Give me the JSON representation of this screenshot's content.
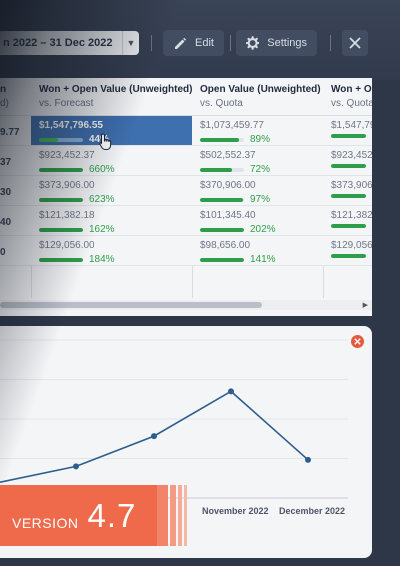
{
  "toolbar": {
    "date_range": "n 2022 – 31 Dec 2022",
    "edit_label": "Edit",
    "settings_label": "Settings"
  },
  "table": {
    "left_col": {
      "header_t1": "n",
      "header_t2": "d)",
      "values": [
        "9.77",
        "37",
        "30",
        "40",
        "0"
      ]
    },
    "columns": [
      {
        "header": "Won + Open Value (Unweighted)",
        "sub": "vs. Forecast",
        "rows": [
          {
            "value": "$1,547,796.55",
            "pct": "44%",
            "fill": 0.44,
            "selected": true
          },
          {
            "value": "$923,452.37",
            "pct": "660%",
            "fill": 1.0
          },
          {
            "value": "$373,906.00",
            "pct": "623%",
            "fill": 1.0
          },
          {
            "value": "$121,382.18",
            "pct": "162%",
            "fill": 1.0
          },
          {
            "value": "$129,056.00",
            "pct": "184%",
            "fill": 1.0
          }
        ]
      },
      {
        "header": "Open Value (Unweighted)",
        "sub": "vs. Quota",
        "rows": [
          {
            "value": "$1,073,459.77",
            "pct": "89%",
            "fill": 0.89
          },
          {
            "value": "$502,552.37",
            "pct": "72%",
            "fill": 0.72
          },
          {
            "value": "$370,906.00",
            "pct": "97%",
            "fill": 0.97
          },
          {
            "value": "$101,345.40",
            "pct": "202%",
            "fill": 1.0
          },
          {
            "value": "$98,656.00",
            "pct": "141%",
            "fill": 1.0
          }
        ]
      },
      {
        "header": "Won + Op",
        "sub": "vs. Quota",
        "rows": [
          {
            "value": "$1,547,79",
            "pct": "",
            "fill": 1.0
          },
          {
            "value": "$923,452",
            "pct": "",
            "fill": 1.0
          },
          {
            "value": "$373,906.",
            "pct": "",
            "fill": 1.0
          },
          {
            "value": "$121,382.",
            "pct": "",
            "fill": 1.0
          },
          {
            "value": "$129,056.",
            "pct": "",
            "fill": 1.0
          }
        ]
      }
    ]
  },
  "chart_data": {
    "type": "line",
    "categories": [
      "",
      "",
      "",
      "November 2022",
      "December 2022"
    ],
    "series": [
      {
        "values": [
          120000,
          240000,
          470000,
          810000,
          290000
        ]
      }
    ],
    "ylim": [
      0,
      1200000
    ],
    "grid": true,
    "line_color": "#2d5d8f"
  },
  "badge": {
    "label": "VERSION",
    "number": "4.7",
    "color": "#ee6a4a"
  }
}
